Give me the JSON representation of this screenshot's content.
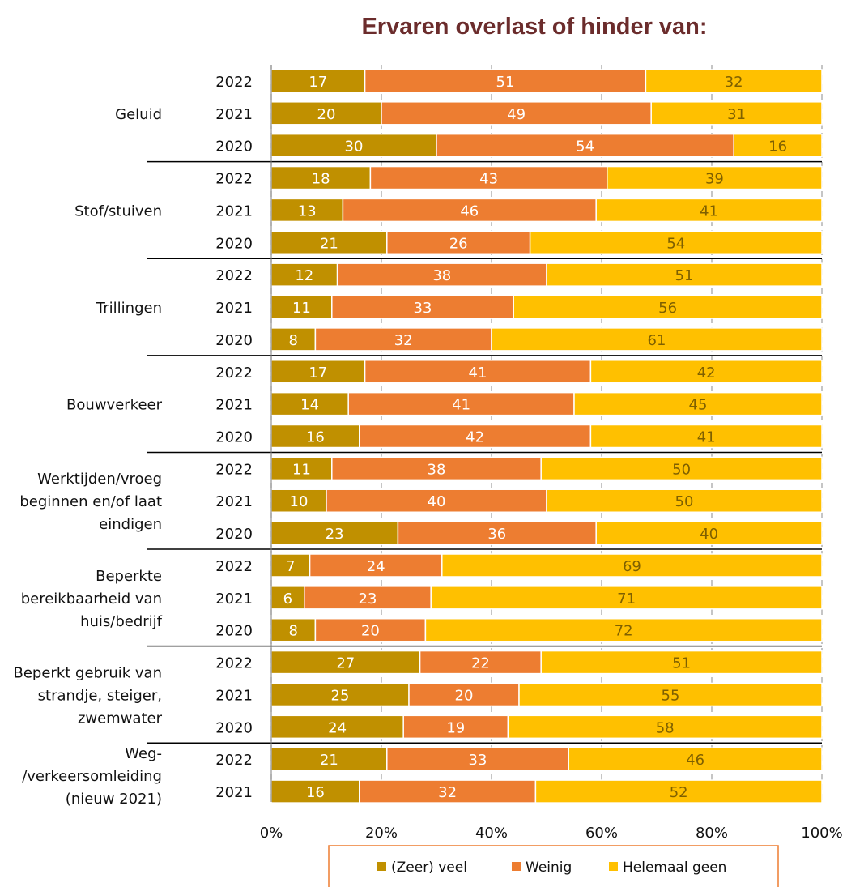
{
  "chart_data": {
    "type": "bar",
    "orientation": "horizontal",
    "stacked": true,
    "title": "Ervaren overlast of hinder van:",
    "xlim": [
      0,
      100
    ],
    "x_ticks": [
      "0%",
      "20%",
      "40%",
      "60%",
      "80%",
      "100%"
    ],
    "grid": true,
    "legend_position": "bottom",
    "series": [
      {
        "name": "(Zeer) veel",
        "color": "#C09000"
      },
      {
        "name": "Weinig",
        "color": "#ED7D31"
      },
      {
        "name": "Helemaal geen",
        "color": "#FFC000"
      }
    ],
    "label_colors": [
      "#ffffff",
      "#ffffff",
      "#7F6000"
    ],
    "groups": [
      {
        "category": "Geluid",
        "rows": [
          {
            "year": "2022",
            "values": [
              17,
              51,
              32
            ]
          },
          {
            "year": "2021",
            "values": [
              20,
              49,
              31
            ]
          },
          {
            "year": "2020",
            "values": [
              30,
              54,
              16
            ]
          }
        ]
      },
      {
        "category": "Stof/stuiven",
        "rows": [
          {
            "year": "2022",
            "values": [
              18,
              43,
              39
            ]
          },
          {
            "year": "2021",
            "values": [
              13,
              46,
              41
            ]
          },
          {
            "year": "2020",
            "values": [
              21,
              26,
              54
            ]
          }
        ]
      },
      {
        "category": "Trillingen",
        "rows": [
          {
            "year": "2022",
            "values": [
              12,
              38,
              51
            ]
          },
          {
            "year": "2021",
            "values": [
              11,
              33,
              56
            ]
          },
          {
            "year": "2020",
            "values": [
              8,
              32,
              61
            ]
          }
        ]
      },
      {
        "category": "Bouwverkeer",
        "rows": [
          {
            "year": "2022",
            "values": [
              17,
              41,
              42
            ]
          },
          {
            "year": "2021",
            "values": [
              14,
              41,
              45
            ]
          },
          {
            "year": "2020",
            "values": [
              16,
              42,
              41
            ]
          }
        ]
      },
      {
        "category": "Werktijden/vroeg beginnen en/of laat eindigen",
        "category_lines": [
          "Werktijden/vroeg",
          "beginnen en/of laat",
          "eindigen"
        ],
        "rows": [
          {
            "year": "2022",
            "values": [
              11,
              38,
              50
            ]
          },
          {
            "year": "2021",
            "values": [
              10,
              40,
              50
            ]
          },
          {
            "year": "2020",
            "values": [
              23,
              36,
              40
            ]
          }
        ]
      },
      {
        "category": "Beperkte bereikbaarheid van huis/bedrijf",
        "category_lines": [
          "Beperkte",
          "bereikbaarheid van",
          "huis/bedrijf"
        ],
        "rows": [
          {
            "year": "2022",
            "values": [
              7,
              24,
              69
            ]
          },
          {
            "year": "2021",
            "values": [
              6,
              23,
              71
            ]
          },
          {
            "year": "2020",
            "values": [
              8,
              20,
              72
            ]
          }
        ]
      },
      {
        "category": "Beperkt gebruik van strandje, steiger, zwemwater",
        "category_lines": [
          "Beperkt gebruik van",
          "strandje, steiger,",
          "zwemwater"
        ],
        "rows": [
          {
            "year": "2022",
            "values": [
              27,
              22,
              51
            ]
          },
          {
            "year": "2021",
            "values": [
              25,
              20,
              55
            ]
          },
          {
            "year": "2020",
            "values": [
              24,
              19,
              58
            ]
          }
        ]
      },
      {
        "category": "Weg-/verkeersomleiding (nieuw 2021)",
        "category_lines": [
          "Weg-",
          "/verkeersomleiding",
          "(nieuw 2021)"
        ],
        "rows": [
          {
            "year": "2022",
            "values": [
              21,
              33,
              46
            ]
          },
          {
            "year": "2021",
            "values": [
              16,
              32,
              52
            ]
          }
        ]
      }
    ]
  },
  "colors": {
    "title": "#6B2C2C",
    "grid": "#A6A6A6",
    "legend_border": "#ED7D31"
  }
}
